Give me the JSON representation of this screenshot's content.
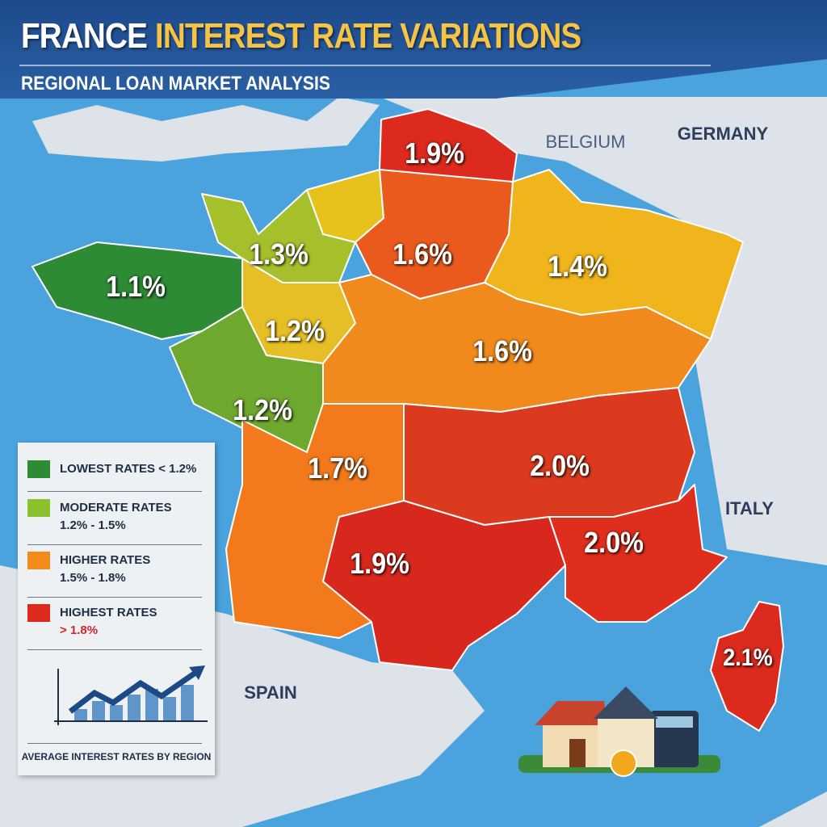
{
  "header": {
    "title_part1": "FRANCE",
    "title_part2": "INTEREST RATE VARIATIONS",
    "subtitle": "REGIONAL LOAN MARKET ANALYSIS"
  },
  "countries": {
    "belgium": "BELGIUM",
    "germany": "GERMANY",
    "italy": "ITALY",
    "spain": "SPAIN"
  },
  "colors": {
    "lowest": "#2e8b35",
    "moderate": "#8cc02e",
    "moderate_yellow": "#e8c21c",
    "higher": "#f28a1c",
    "highest": "#dc2a1e",
    "sea": "#4aa3dc",
    "land": "#dde3e8",
    "header": "#1d4a8c",
    "accent": "#f6c445"
  },
  "regions": [
    {
      "id": "hauts-de-france",
      "rate": "1.9%",
      "category": "highest"
    },
    {
      "id": "normandy",
      "rate": "1.3%",
      "category": "moderate"
    },
    {
      "id": "brittany",
      "rate": "1.1%",
      "category": "lowest"
    },
    {
      "id": "ile-de-france",
      "rate": "1.6%",
      "category": "higher"
    },
    {
      "id": "grand-est",
      "rate": "1.4%",
      "category": "moderate"
    },
    {
      "id": "pays-de-la-loire",
      "rate": "1.2%",
      "category": "moderate"
    },
    {
      "id": "centre-bourgogne",
      "rate": "1.6%",
      "category": "higher"
    },
    {
      "id": "loire-coast",
      "rate": "1.2%",
      "category": "moderate"
    },
    {
      "id": "nouvelle-aquitaine",
      "rate": "1.7%",
      "category": "higher"
    },
    {
      "id": "auvergne-rhone-alpes",
      "rate": "2.0%",
      "category": "highest"
    },
    {
      "id": "occitanie",
      "rate": "1.9%",
      "category": "highest"
    },
    {
      "id": "provence",
      "rate": "2.0%",
      "category": "highest"
    },
    {
      "id": "corsica",
      "rate": "2.1%",
      "category": "highest"
    }
  ],
  "legend": {
    "items": [
      {
        "label": "LOWEST RATES < 1.2%",
        "range": ""
      },
      {
        "label": "MODERATE RATES",
        "range": "1.2% - 1.5%"
      },
      {
        "label": "HIGHER RATES",
        "range": "1.5% - 1.8%"
      },
      {
        "label": "HIGHEST RATES",
        "range": "> 1.8%"
      }
    ],
    "footer": "AVERAGE INTEREST RATES BY REGION",
    "icon": "trend-chart-icon"
  },
  "decoration": {
    "icon": "house-calculator-euro-icon",
    "coin_symbol": "€"
  }
}
